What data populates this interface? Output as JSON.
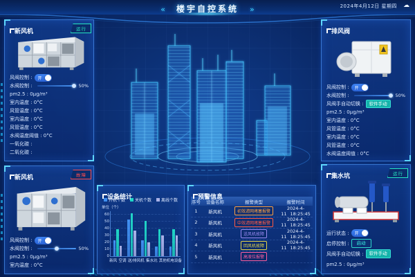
{
  "header": {
    "title": "楼宇自控系统",
    "left_arrow": "«",
    "right_arrow": "»",
    "datetime": "2024年4月12日 星期四",
    "weather_icon": "cloud"
  },
  "panels": {
    "p1": {
      "title": "新风机",
      "badge": {
        "label": "运行",
        "color": "#26e6c3"
      },
      "rows": [
        {
          "kind": "toggle",
          "label": "风阀控制",
          "value": "开",
          "on": true
        },
        {
          "kind": "slider",
          "label": "水阀控制",
          "value": "50%",
          "knob": 95
        },
        {
          "kind": "stat",
          "label": "pm2.5",
          "value": "0μg/m³"
        },
        {
          "kind": "stat",
          "label": "室内温度",
          "value": "0°C"
        },
        {
          "kind": "stat",
          "label": "风管温度",
          "value": "0°C"
        },
        {
          "kind": "stat",
          "label": "室内温度",
          "value": "0°C"
        },
        {
          "kind": "stat",
          "label": "风管温度",
          "value": "0°C"
        },
        {
          "kind": "stat",
          "label": "水阀温度阈值",
          "value": "0°C"
        },
        {
          "kind": "stat",
          "label": "一氧化碳",
          "value": ""
        },
        {
          "kind": "stat",
          "label": "二氧化碳",
          "value": ""
        }
      ]
    },
    "p2": {
      "title": "新风机",
      "badge": {
        "label": "故障",
        "color": "#ff4d4d"
      },
      "rows": [
        {
          "kind": "toggle",
          "label": "风阀控制",
          "value": "开",
          "on": true
        },
        {
          "kind": "slider",
          "label": "水阀控制",
          "value": "50%",
          "knob": 50
        },
        {
          "kind": "stat",
          "label": "pm2.5",
          "value": "0μg/m³"
        },
        {
          "kind": "stat",
          "label": "室内温度",
          "value": "0°C"
        }
      ]
    },
    "p3": {
      "title": "排风阀",
      "badge": null,
      "rows": [
        {
          "kind": "toggle",
          "label": "风阀控制",
          "value": "开",
          "on": true
        },
        {
          "kind": "slider",
          "label": "水阀控制",
          "value": "50%",
          "knob": 95
        },
        {
          "kind": "button",
          "label": "风阀手自动切换",
          "value": "软件手动",
          "style": "solid"
        },
        {
          "kind": "stat",
          "label": "pm2.5",
          "value": "0μg/m³"
        },
        {
          "kind": "stat",
          "label": "室内温度",
          "value": "0°C"
        },
        {
          "kind": "stat",
          "label": "风管温度",
          "value": "0°C"
        },
        {
          "kind": "stat",
          "label": "室内温度",
          "value": "0°C"
        },
        {
          "kind": "stat",
          "label": "风管温度",
          "value": "0°C"
        },
        {
          "kind": "stat",
          "label": "水阀温度阈值",
          "value": "0°C"
        }
      ]
    },
    "p4": {
      "title": "集水坑",
      "badge": {
        "label": "运行",
        "color": "#26e6c3"
      },
      "rows": [
        {
          "kind": "toggle",
          "label": "运行状态",
          "value": "开",
          "on": true
        },
        {
          "kind": "button",
          "label": "启停控制",
          "value": "启动",
          "style": "outline"
        },
        {
          "kind": "button",
          "label": "风阀手自动切换",
          "value": "软件手动",
          "style": "solid"
        },
        {
          "kind": "stat",
          "label": "pm2.5",
          "value": "0μg/m³"
        }
      ]
    }
  },
  "chart_data": {
    "type": "bar",
    "title": "设备统计",
    "unit_label": "单位（个）",
    "categories": [
      "新风",
      "空调",
      "送/排风机",
      "集水坑",
      "其他机电设备"
    ],
    "series": [
      {
        "name": "开机个数",
        "color": "#3f8ff0",
        "values": [
          23,
          53,
          23,
          14,
          14
        ]
      },
      {
        "name": "关机个数",
        "color": "#1fd6c6",
        "values": [
          39,
          62,
          51,
          39,
          39
        ]
      },
      {
        "name": "离线个数",
        "color": "#aab2e8",
        "values": [
          15,
          37,
          20,
          30,
          30
        ]
      }
    ],
    "yticks": [
      0,
      10,
      20,
      30,
      40,
      50,
      60
    ],
    "ylim": [
      0,
      66
    ],
    "legend_position": "top",
    "grid": true
  },
  "alarm_table": {
    "title": "预警信息",
    "columns": [
      "序号",
      "设备名称",
      "报警类型",
      "报警时间"
    ],
    "rows": [
      {
        "no": "1",
        "device": "新风机",
        "type": "初效滤网堵塞报警",
        "color": "#ffa040",
        "date": "2024-4-11",
        "time": "18:25:45"
      },
      {
        "no": "2",
        "device": "新风机",
        "type": "中效滤网堵塞报警",
        "color": "#ff5b45",
        "date": "2024-4-11",
        "time": "18:25:45"
      },
      {
        "no": "3",
        "device": "新风机",
        "type": "送风机故障",
        "color": "#9b8bf4",
        "date": "2024-4-11",
        "time": "18:25:45"
      },
      {
        "no": "4",
        "device": "新风机",
        "type": "回风机故障",
        "color": "#e6d44a",
        "date": "2024-4-11",
        "time": "18:25:45"
      },
      {
        "no": "5",
        "device": "新风机",
        "type": "高液位报警",
        "color": "#ff5fa2",
        "date": "",
        "time": ""
      }
    ]
  }
}
